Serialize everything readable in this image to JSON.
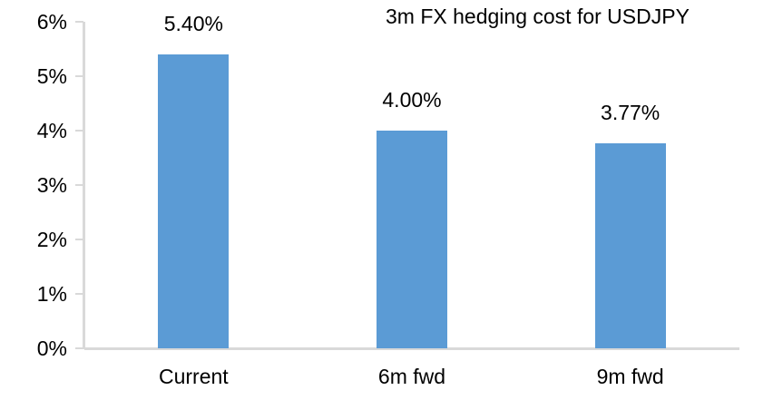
{
  "chart_data": {
    "type": "bar",
    "title": "3m FX hedging cost for USDJPY",
    "categories": [
      "Current",
      "6m fwd",
      "9m fwd"
    ],
    "values": [
      5.4,
      4.0,
      3.77
    ],
    "data_labels": [
      "5.40%",
      "4.00%",
      "3.77%"
    ],
    "ylim": [
      0,
      6
    ],
    "ytick_step": 1,
    "ytick_labels": [
      "0%",
      "1%",
      "2%",
      "3%",
      "4%",
      "5%",
      "6%"
    ],
    "xlabel": "",
    "ylabel": "",
    "grid": false,
    "legend": false,
    "bar_color": "#5b9bd5",
    "axis_color": "#d9d9d9",
    "text_color": "#000000"
  }
}
